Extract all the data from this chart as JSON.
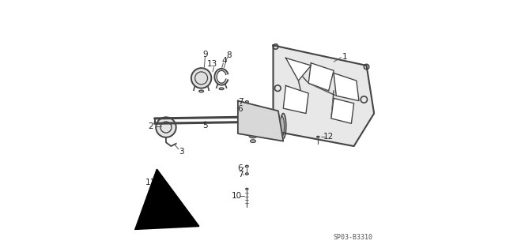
{
  "bg_color": "#ffffff",
  "diagram_code": "SP03-B3310",
  "text_color": "#222222",
  "line_color": "#555555",
  "part_color": "#333333",
  "dgray": "#444444"
}
